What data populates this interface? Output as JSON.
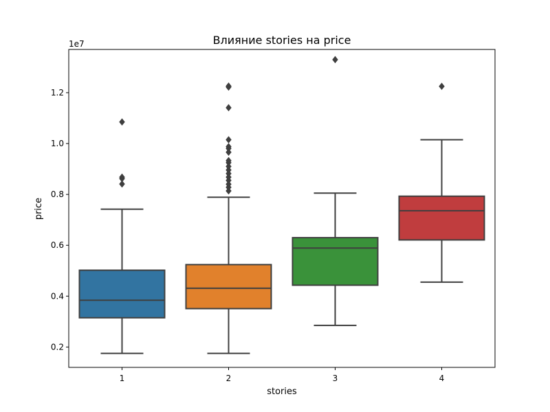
{
  "chart_data": {
    "type": "box",
    "title": "Влияние stories на price",
    "xlabel": "stories",
    "ylabel": "price",
    "y_multiplier_label": "1e7",
    "ylim": [
      0.12,
      1.37
    ],
    "yticks": [
      0.2,
      0.4,
      0.6,
      0.8,
      1.0,
      1.2
    ],
    "ytick_labels": [
      "0.2",
      "0.4",
      "0.6",
      "0.8",
      "1.0",
      "1.2"
    ],
    "grid": false,
    "categories": [
      "1",
      "2",
      "3",
      "4"
    ],
    "colors": [
      "#3274a1",
      "#e1812c",
      "#3a923a",
      "#c03d3e"
    ],
    "boxes": [
      {
        "category": "1",
        "whisker_low": 0.175,
        "q1": 0.315,
        "median": 0.384,
        "q3": 0.502,
        "whisker_high": 0.742,
        "outliers": [
          0.841,
          0.862,
          0.868,
          1.085
        ]
      },
      {
        "category": "2",
        "whisker_low": 0.175,
        "q1": 0.351,
        "median": 0.431,
        "q3": 0.524,
        "whisker_high": 0.789,
        "outliers": [
          0.814,
          0.828,
          0.84,
          0.855,
          0.868,
          0.882,
          0.896,
          0.91,
          0.925,
          0.933,
          0.966,
          0.981,
          0.988,
          1.015,
          1.141,
          1.222,
          1.226
        ]
      },
      {
        "category": "3",
        "whisker_low": 0.285,
        "q1": 0.443,
        "median": 0.589,
        "q3": 0.63,
        "whisker_high": 0.805,
        "outliers": [
          1.33
        ]
      },
      {
        "category": "4",
        "whisker_low": 0.455,
        "q1": 0.621,
        "median": 0.736,
        "q3": 0.793,
        "whisker_high": 1.015,
        "outliers": [
          1.225
        ]
      }
    ]
  }
}
